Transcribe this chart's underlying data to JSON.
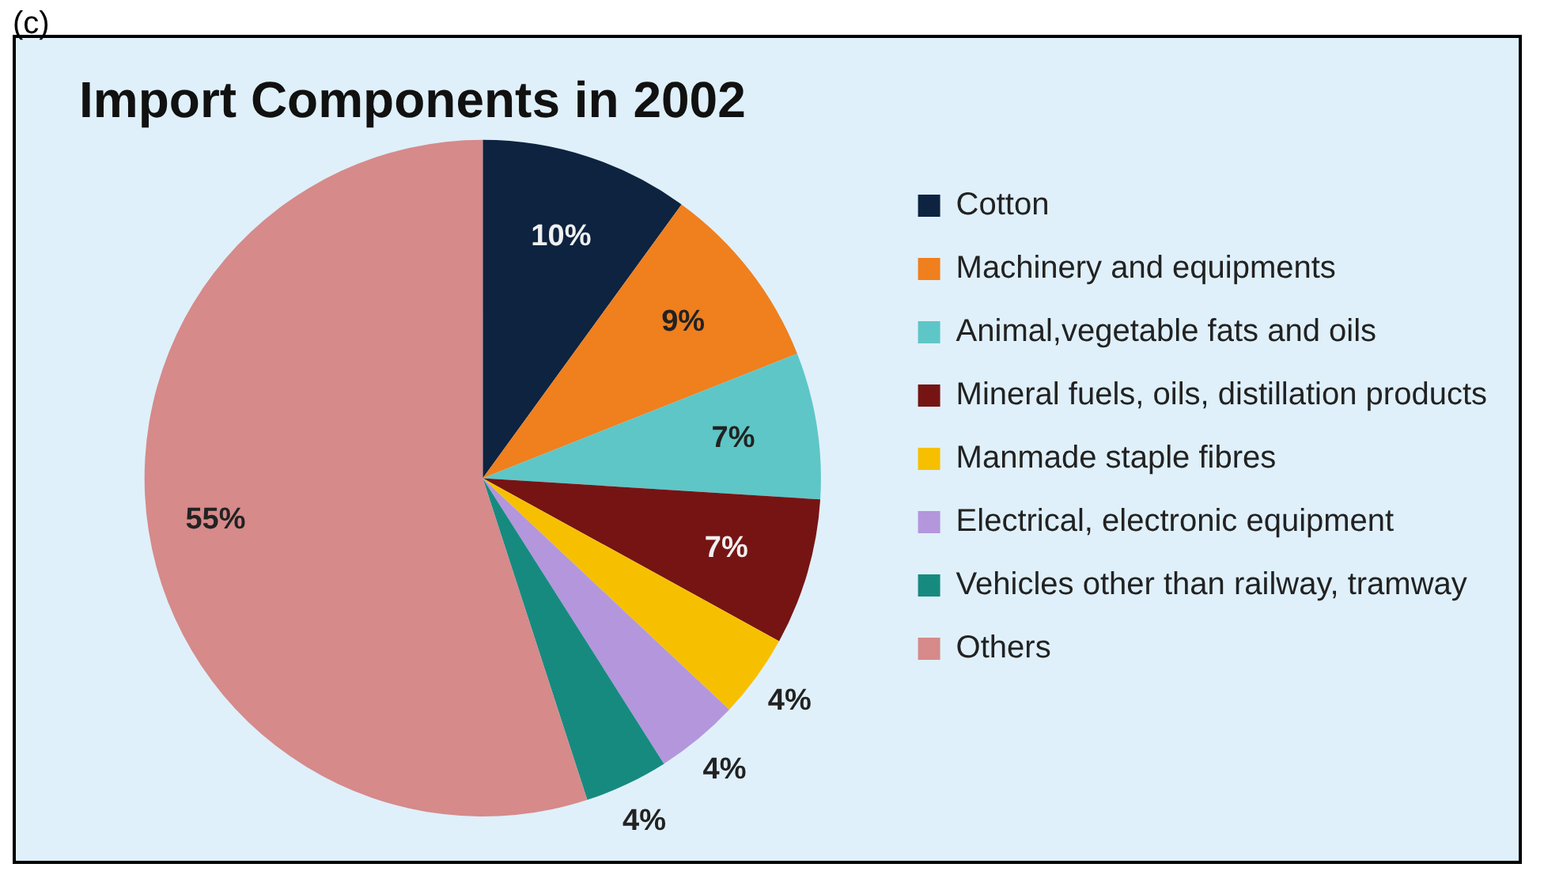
{
  "chart_data": {
    "type": "pie",
    "title": "Import Components in 2002",
    "categories": [
      "Cotton",
      "Machinery and equipments",
      "Animal,vegetable fats and oils",
      "Mineral fuels, oils, distillation products",
      "Manmade staple fibres",
      "Electrical, electronic equipment",
      "Vehicles other than railway, tramway",
      "Others"
    ],
    "values": [
      10,
      9,
      7,
      7,
      4,
      4,
      4,
      55
    ],
    "value_labels": [
      "10%",
      "9%",
      "7%",
      "7%",
      "4%",
      "4%",
      "4%",
      "55%"
    ],
    "colors": [
      "#0d2340",
      "#f07f1e",
      "#5ec6c6",
      "#761414",
      "#f6c000",
      "#b496dc",
      "#178a80",
      "#d68a8a"
    ],
    "legend": "right",
    "annotations": [
      "(c)"
    ]
  }
}
